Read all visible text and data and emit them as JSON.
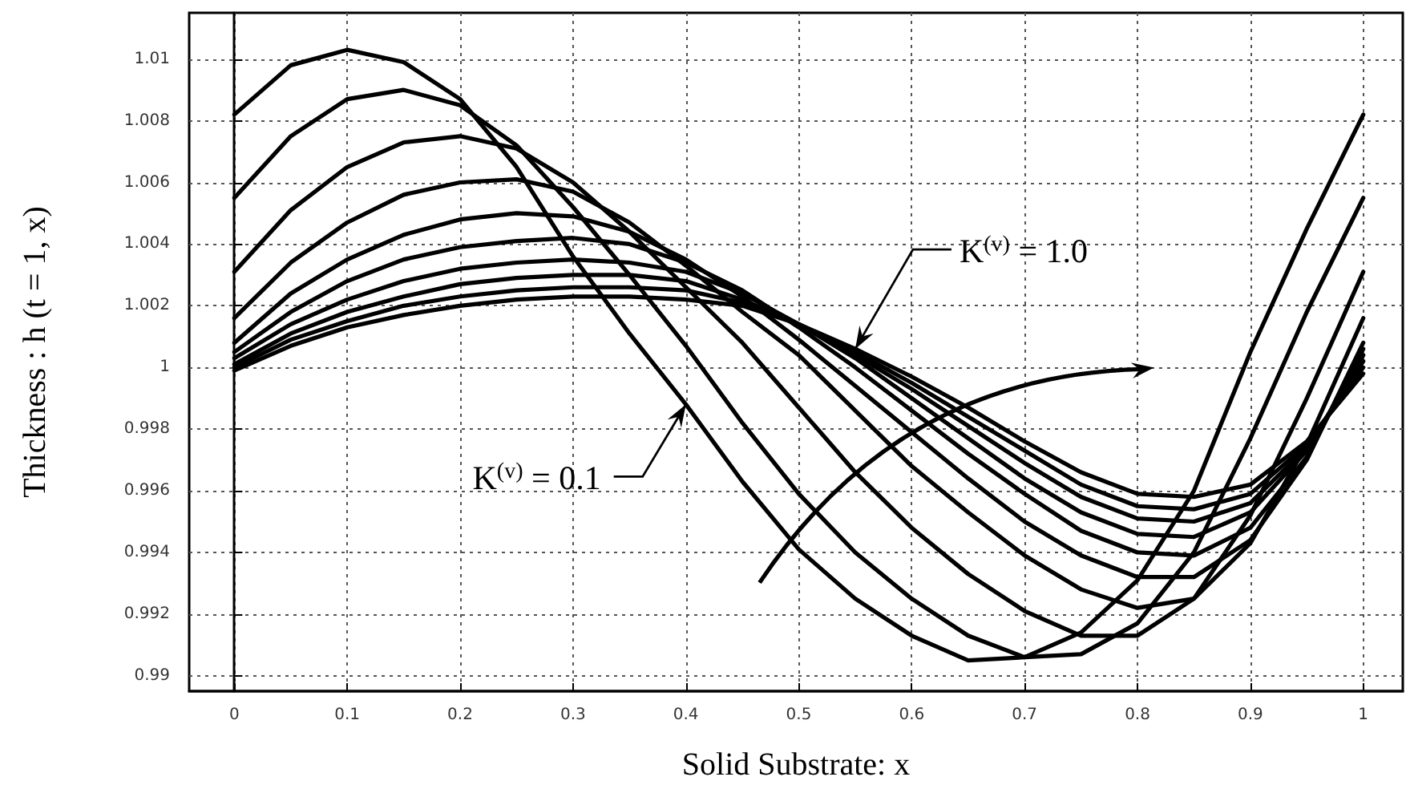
{
  "chart_data": {
    "type": "line",
    "xlabel": "Solid Substrate: x",
    "ylabel": "Thickness : h (t = 1, x)",
    "x": [
      0,
      0.05,
      0.1,
      0.15,
      0.2,
      0.25,
      0.3,
      0.35,
      0.4,
      0.45,
      0.5,
      0.55,
      0.6,
      0.65,
      0.7,
      0.75,
      0.8,
      0.85,
      0.9,
      0.95,
      1
    ],
    "series": [
      {
        "color": "#000000",
        "values": [
          1.0082,
          1.0098,
          1.0103,
          1.0099,
          1.0087,
          1.0065,
          1.0036,
          1.0011,
          0.9988,
          0.9963,
          0.9941,
          0.9925,
          0.9913,
          0.9905,
          0.9906,
          0.9914,
          0.9931,
          0.996,
          1.0005,
          1.0045,
          1.0082
        ]
      },
      {
        "color": "#000000",
        "values": [
          1.0055,
          1.0075,
          1.0087,
          1.009,
          1.0085,
          1.0072,
          1.0052,
          1.003,
          1.0007,
          0.9982,
          0.9959,
          0.994,
          0.9925,
          0.9913,
          0.9906,
          0.9907,
          0.9917,
          0.994,
          0.9977,
          1.0018,
          1.0055
        ]
      },
      {
        "color": "#000000",
        "values": [
          1.0031,
          1.0051,
          1.0065,
          1.0073,
          1.0075,
          1.0071,
          1.006,
          1.0044,
          1.0026,
          1.0008,
          0.9987,
          0.9966,
          0.9948,
          0.9933,
          0.9921,
          0.9913,
          0.9913,
          0.9925,
          0.9952,
          0.999,
          1.0031
        ]
      },
      {
        "color": "#000000",
        "values": [
          1.0016,
          1.0034,
          1.0047,
          1.0056,
          1.006,
          1.0061,
          1.0057,
          1.0047,
          1.0033,
          1.0018,
          1.0004,
          0.9986,
          0.9968,
          0.9953,
          0.9939,
          0.9928,
          0.9922,
          0.9925,
          0.9943,
          0.9975,
          1.0016
        ]
      },
      {
        "color": "#000000",
        "values": [
          1.0008,
          1.0024,
          1.0035,
          1.0043,
          1.0048,
          1.005,
          1.0049,
          1.0044,
          1.0035,
          1.0023,
          1.0009,
          0.9994,
          0.9979,
          0.9964,
          0.995,
          0.9939,
          0.9932,
          0.9932,
          0.9944,
          0.997,
          1.0008
        ]
      },
      {
        "color": "#000000",
        "values": [
          1.0005,
          1.0018,
          1.0028,
          1.0035,
          1.0039,
          1.0041,
          1.0042,
          1.004,
          1.0034,
          1.0025,
          1.0013,
          1.0,
          0.9986,
          0.9972,
          0.9959,
          0.9947,
          0.994,
          0.9939,
          0.9948,
          0.9971,
          1.0006
        ]
      },
      {
        "color": "#000000",
        "values": [
          1.0003,
          1.0014,
          1.0022,
          1.0028,
          1.0032,
          1.0034,
          1.0035,
          1.0034,
          1.0031,
          1.0024,
          1.0014,
          1.0003,
          0.999,
          0.9977,
          0.9964,
          0.9953,
          0.9946,
          0.9945,
          0.9953,
          0.9973,
          1.0004
        ]
      },
      {
        "color": "#000000",
        "values": [
          1.0001,
          1.0011,
          1.0018,
          1.0023,
          1.0027,
          1.0029,
          1.003,
          1.003,
          1.0028,
          1.0022,
          1.0014,
          1.0004,
          0.9993,
          0.9981,
          0.9969,
          0.9958,
          0.9951,
          0.995,
          0.9956,
          0.9974,
          1.0002
        ]
      },
      {
        "color": "#000000",
        "values": [
          1.0,
          1.0009,
          1.0015,
          1.002,
          1.0023,
          1.0025,
          1.0026,
          1.0026,
          1.0025,
          1.0021,
          1.0014,
          1.0005,
          0.9995,
          0.9984,
          0.9973,
          0.9962,
          0.9955,
          0.9954,
          0.9959,
          0.9975,
          1.0
        ]
      },
      {
        "color": "#000000",
        "values": [
          0.9999,
          1.0007,
          1.0013,
          1.0017,
          1.002,
          1.0022,
          1.0023,
          1.0023,
          1.0022,
          1.002,
          1.0014,
          1.0006,
          0.9997,
          0.9987,
          0.9976,
          0.9966,
          0.9959,
          0.9958,
          0.9962,
          0.9976,
          0.9998
        ]
      }
    ],
    "annotations": [
      {
        "text": "K$^{(v)}$ = 1.0",
        "x": 0.55,
        "y": 1.0006
      },
      {
        "text": "K$^{(v)}$ = 0.1",
        "x": 0.4,
        "y": 0.9988
      }
    ],
    "xlim": [
      -0.04,
      1.035
    ],
    "ylim": [
      0.9895,
      1.0115
    ],
    "xticks": [
      0,
      0.1,
      0.2,
      0.3,
      0.4,
      0.5,
      0.6,
      0.7,
      0.8,
      0.9,
      1
    ],
    "yticks": [
      0.99,
      0.992,
      0.994,
      0.996,
      0.998,
      1,
      1.002,
      1.004,
      1.006,
      1.008,
      1.01
    ],
    "grid": true,
    "marker": "none",
    "line_style": "solid"
  }
}
